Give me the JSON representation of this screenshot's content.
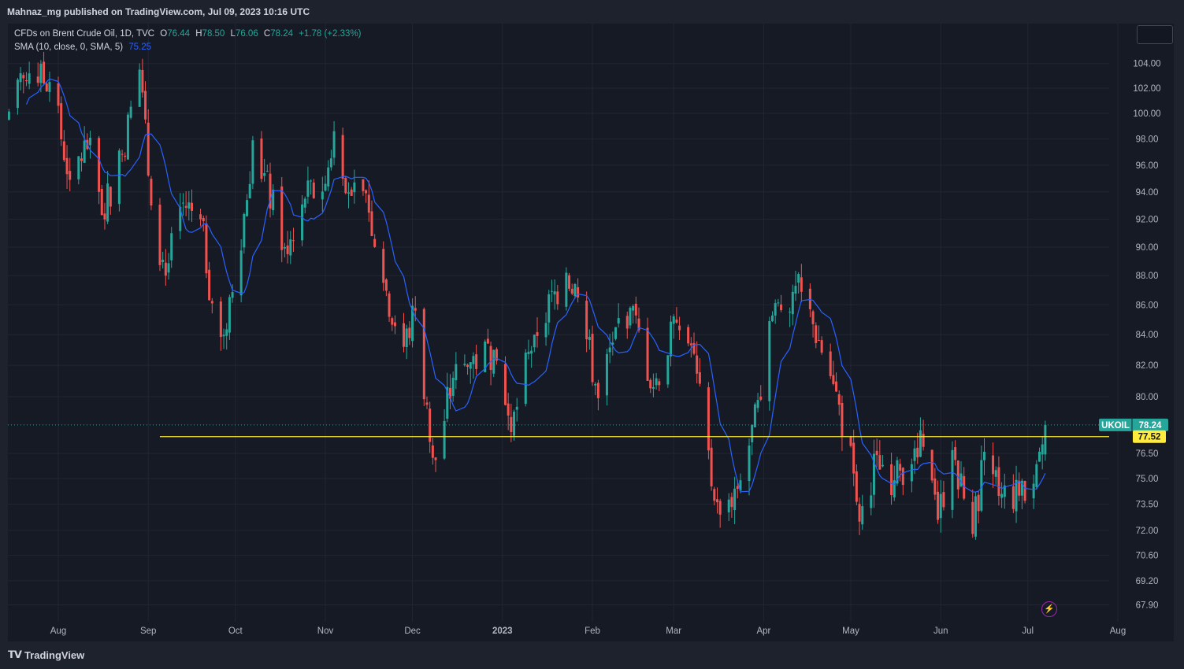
{
  "header": {
    "published_by": "Mahnaz_mg published on TradingView.com, Jul 09, 2023 10:16 UTC"
  },
  "legend": {
    "symbol_line": "CFDs on Brent Crude Oil, 1D, TVC",
    "o_label": "O",
    "o_value": "76.44",
    "h_label": "H",
    "h_value": "78.50",
    "l_label": "L",
    "l_value": "76.06",
    "c_label": "C",
    "c_value": "78.24",
    "change": "+1.78 (+2.33%)",
    "sma_label": "SMA (10, close, 0, SMA, 5)",
    "sma_value": "75.25"
  },
  "footer": {
    "brand": "TradingView",
    "logo_icon": "tradingview-logo-icon"
  },
  "colors": {
    "up": "#26a69a",
    "down": "#ef5350",
    "sma": "#2962ff",
    "support": "#ffeb3b",
    "bg": "#161a25",
    "grid": "#232632"
  },
  "chart_data": {
    "type": "candlestick",
    "symbol": "UKOIL",
    "y_axis_labels": [
      "104.00",
      "102.00",
      "100.00",
      "98.00",
      "96.00",
      "94.00",
      "92.00",
      "90.00",
      "88.00",
      "86.00",
      "84.00",
      "82.00",
      "80.00",
      "76.50",
      "75.00",
      "73.50",
      "72.00",
      "70.60",
      "69.20",
      "67.90"
    ],
    "y_scale": "log",
    "ylim": [
      67.0,
      106.0
    ],
    "x_labels": [
      "Aug",
      "Sep",
      "Oct",
      "Nov",
      "Dec",
      "2023",
      "Feb",
      "Mar",
      "Apr",
      "May",
      "Jun",
      "Jul",
      "Aug"
    ],
    "x_label_dates": [
      "2022-08-01",
      "2022-09-01",
      "2022-10-01",
      "2022-11-01",
      "2022-12-01",
      "2023-01-01",
      "2023-02-01",
      "2023-03-01",
      "2023-04-01",
      "2023-05-01",
      "2023-06-01",
      "2023-07-01",
      "2023-08-01"
    ],
    "start_date": "2022-07-08",
    "end_date": "2023-07-07",
    "last_price": {
      "label": "UKOIL",
      "value": "78.24"
    },
    "support_level": {
      "value": "77.52",
      "start_date": "2022-09-05"
    },
    "sma": {
      "period": 10,
      "value": "75.25"
    },
    "anchor_closes": [
      {
        "date": "2022-07-08",
        "close": 98
      },
      {
        "date": "2022-07-14",
        "close": 99.5
      },
      {
        "date": "2022-07-22",
        "close": 103.2
      },
      {
        "date": "2022-07-29",
        "close": 102.5
      },
      {
        "date": "2022-08-05",
        "close": 94.9
      },
      {
        "date": "2022-08-12",
        "close": 98.1
      },
      {
        "date": "2022-08-16",
        "close": 92.3
      },
      {
        "date": "2022-08-23",
        "close": 96.8
      },
      {
        "date": "2022-08-29",
        "close": 103.5
      },
      {
        "date": "2022-09-02",
        "close": 93.0
      },
      {
        "date": "2022-09-07",
        "close": 88.0
      },
      {
        "date": "2022-09-13",
        "close": 93.2
      },
      {
        "date": "2022-09-19",
        "close": 92.0
      },
      {
        "date": "2022-09-23",
        "close": 86.1
      },
      {
        "date": "2022-09-27",
        "close": 84.0
      },
      {
        "date": "2022-10-05",
        "close": 93.4
      },
      {
        "date": "2022-10-07",
        "close": 97.9
      },
      {
        "date": "2022-10-18",
        "close": 90.0
      },
      {
        "date": "2022-10-25",
        "close": 93.5
      },
      {
        "date": "2022-11-01",
        "close": 94.6
      },
      {
        "date": "2022-11-04",
        "close": 98.6
      },
      {
        "date": "2022-11-10",
        "close": 93.7
      },
      {
        "date": "2022-11-15",
        "close": 93.9
      },
      {
        "date": "2022-11-21",
        "close": 87.5
      },
      {
        "date": "2022-11-28",
        "close": 83.2
      },
      {
        "date": "2022-12-02",
        "close": 85.6
      },
      {
        "date": "2022-12-07",
        "close": 77.2
      },
      {
        "date": "2022-12-09",
        "close": 76.1
      },
      {
        "date": "2022-12-15",
        "close": 81.2
      },
      {
        "date": "2022-12-21",
        "close": 82.2
      },
      {
        "date": "2022-12-29",
        "close": 83.0
      },
      {
        "date": "2023-01-04",
        "close": 77.8
      },
      {
        "date": "2023-01-12",
        "close": 84.0
      },
      {
        "date": "2023-01-23",
        "close": 88.2
      },
      {
        "date": "2023-01-27",
        "close": 86.5
      },
      {
        "date": "2023-02-03",
        "close": 79.9
      },
      {
        "date": "2023-02-09",
        "close": 84.5
      },
      {
        "date": "2023-02-14",
        "close": 85.8
      },
      {
        "date": "2023-02-22",
        "close": 80.6
      },
      {
        "date": "2023-03-02",
        "close": 84.8
      },
      {
        "date": "2023-03-07",
        "close": 83.3
      },
      {
        "date": "2023-03-15",
        "close": 73.7
      },
      {
        "date": "2023-03-17",
        "close": 72.9
      },
      {
        "date": "2023-03-24",
        "close": 74.9
      },
      {
        "date": "2023-03-31",
        "close": 79.8
      },
      {
        "date": "2023-04-03",
        "close": 84.9
      },
      {
        "date": "2023-04-12",
        "close": 87.3
      },
      {
        "date": "2023-04-18",
        "close": 84.7
      },
      {
        "date": "2023-04-25",
        "close": 80.8
      },
      {
        "date": "2023-05-02",
        "close": 75.3
      },
      {
        "date": "2023-05-04",
        "close": 72.5
      },
      {
        "date": "2023-05-10",
        "close": 76.4
      },
      {
        "date": "2023-05-16",
        "close": 74.9
      },
      {
        "date": "2023-05-23",
        "close": 76.8
      },
      {
        "date": "2023-05-26",
        "close": 76.9
      },
      {
        "date": "2023-05-31",
        "close": 72.6
      },
      {
        "date": "2023-06-05",
        "close": 76.7
      },
      {
        "date": "2023-06-12",
        "close": 71.8
      },
      {
        "date": "2023-06-16",
        "close": 76.6
      },
      {
        "date": "2023-06-22",
        "close": 74.1
      },
      {
        "date": "2023-06-28",
        "close": 74.0
      },
      {
        "date": "2023-07-03",
        "close": 74.7
      },
      {
        "date": "2023-07-05",
        "close": 76.6
      },
      {
        "date": "2023-07-07",
        "close": 78.24
      }
    ]
  }
}
